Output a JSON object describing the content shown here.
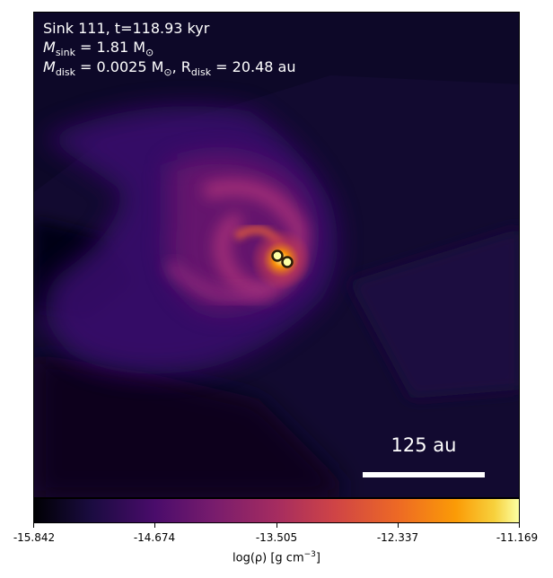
{
  "panel": {
    "sink_line": "Sink 111, t=118.93 kyr",
    "msink_label": "M",
    "msink_sub": "sink",
    "msink_value": " = 1.81 M",
    "msink_unit_sub": "⊙",
    "mdisk_label": "M",
    "mdisk_sub": "disk",
    "mdisk_value": " = 0.0025 M",
    "mdisk_unit_sub": "⊙",
    "rdisk_sep": ", R",
    "rdisk_sub": "disk",
    "rdisk_value": " = 20.48 au",
    "scalebar_label": "125 au"
  },
  "colorbar": {
    "ticks": [
      "-15.842",
      "-14.674",
      "-13.505",
      "-12.337",
      "-11.169"
    ],
    "label_main": "log(ρ) [g cm",
    "label_sup": "−3",
    "label_end": "]",
    "colormap": "inferno"
  },
  "colors": {
    "background_dark": "#140a36",
    "gas_purple": "#3b0f70",
    "gas_magenta": "#8c2981",
    "hot_orange": "#f57d15",
    "sink_fill": "#fcffa4",
    "sink_ring": "#2b1c07"
  }
}
